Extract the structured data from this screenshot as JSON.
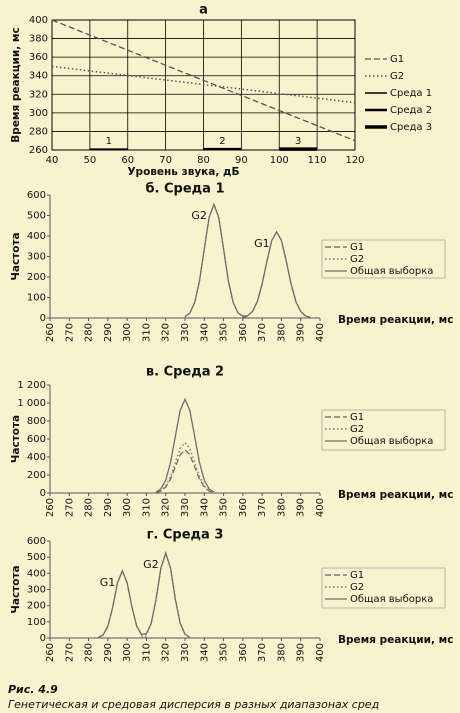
{
  "chart_data": [
    {
      "type": "line",
      "title": "а",
      "xlabel": "Уровень звука, дБ",
      "ylabel": "Время реакции, мс",
      "xlim": [
        40,
        120
      ],
      "ylim": [
        260,
        400
      ],
      "xticks": [
        40,
        50,
        60,
        70,
        80,
        90,
        100,
        110,
        120
      ],
      "yticks": [
        260,
        280,
        300,
        320,
        340,
        360,
        380,
        400
      ],
      "grid": true,
      "legend": "right",
      "series": [
        {
          "name": "G1",
          "color": "#555555",
          "dash": "dashed",
          "width": 1.3,
          "x": [
            40,
            120
          ],
          "values": [
            400,
            270
          ]
        },
        {
          "name": "G2",
          "color": "#555555",
          "dash": "dotted",
          "width": 1.5,
          "x": [
            40,
            120
          ],
          "values": [
            350,
            311
          ]
        },
        {
          "name": "Среда 1",
          "color": "#000000",
          "dash": "solid",
          "width": 1.5,
          "x": [
            50,
            60
          ],
          "values": [
            261,
            261
          ],
          "label": "1"
        },
        {
          "name": "Среда 2",
          "color": "#000000",
          "dash": "solid",
          "width": 2.5,
          "x": [
            80,
            90
          ],
          "values": [
            261,
            261
          ],
          "label": "2"
        },
        {
          "name": "Среда 3",
          "color": "#000000",
          "dash": "solid",
          "width": 3.5,
          "x": [
            100,
            110
          ],
          "values": [
            261,
            261
          ],
          "label": "3"
        }
      ]
    },
    {
      "type": "line",
      "title": "б. Среда 1",
      "xlabel": "Время реакции, мс",
      "ylabel": "Частота",
      "xlim": [
        260,
        400
      ],
      "ylim": [
        0,
        600
      ],
      "xticks": [
        260,
        270,
        280,
        290,
        300,
        310,
        320,
        330,
        340,
        350,
        360,
        370,
        380,
        390,
        400
      ],
      "yticks": [
        0,
        100,
        200,
        300,
        400,
        500,
        600
      ],
      "grid": false,
      "legend": "right",
      "series": [
        {
          "name": "G1",
          "color": "#666666",
          "dash": "dashed",
          "width": 1.2,
          "peak_label": "G1",
          "x": [
            360,
            362.5,
            365,
            367.5,
            370,
            372.5,
            375,
            377.5,
            380,
            382.5,
            385,
            387.5,
            390,
            392.5,
            395
          ],
          "values": [
            3,
            10,
            32,
            80,
            166,
            278,
            379,
            420,
            379,
            278,
            166,
            80,
            32,
            10,
            3
          ]
        },
        {
          "name": "G2",
          "color": "#777777",
          "dash": "dotted",
          "width": 1.4,
          "peak_label": "G2",
          "x": [
            330,
            332.5,
            335,
            337.5,
            340,
            342.5,
            345,
            347.5,
            350,
            352.5,
            355,
            357.5,
            360
          ],
          "values": [
            6,
            24,
            75,
            180,
            337,
            490,
            555,
            490,
            337,
            180,
            75,
            24,
            6
          ]
        },
        {
          "name": "Общая выборка",
          "color": "#6e6e6e",
          "dash": "solid",
          "width": 1.3,
          "x": [
            330,
            332.5,
            335,
            337.5,
            340,
            342.5,
            345,
            347.5,
            350,
            352.5,
            355,
            357.5,
            360,
            362.5,
            365,
            367.5,
            370,
            372.5,
            375,
            377.5,
            380,
            382.5,
            385,
            387.5,
            390,
            392.5,
            395
          ],
          "values": [
            6,
            24,
            75,
            180,
            337,
            490,
            555,
            490,
            337,
            180,
            75,
            25,
            9,
            11,
            32,
            80,
            166,
            278,
            379,
            420,
            379,
            278,
            166,
            80,
            32,
            10,
            3
          ]
        }
      ]
    },
    {
      "type": "line",
      "title": "в. Среда 2",
      "xlabel": "Время реакции, мс",
      "ylabel": "Частота",
      "xlim": [
        260,
        400
      ],
      "ylim": [
        0,
        1200
      ],
      "xticks": [
        260,
        270,
        280,
        290,
        300,
        310,
        320,
        330,
        340,
        350,
        360,
        370,
        380,
        390,
        400
      ],
      "yticks": [
        0,
        200,
        400,
        600,
        800,
        {
          "value": 1000,
          "label": "1 000"
        },
        {
          "value": 1200,
          "label": "1 200"
        }
      ],
      "grid": false,
      "legend": "right",
      "series": [
        {
          "name": "G1",
          "color": "#666666",
          "dash": "dashed",
          "width": 1.2,
          "x": [
            315,
            317.5,
            320,
            322.5,
            325,
            327.5,
            330,
            332.5,
            335,
            337.5,
            340,
            342.5,
            345
          ],
          "values": [
            5,
            21,
            65,
            156,
            291,
            424,
            480,
            424,
            291,
            156,
            65,
            21,
            5
          ]
        },
        {
          "name": "G2",
          "color": "#777777",
          "dash": "dotted",
          "width": 1.4,
          "x": [
            315,
            317.5,
            320,
            322.5,
            325,
            327.5,
            330,
            332.5,
            335,
            337.5,
            340,
            342.5,
            345
          ],
          "values": [
            6,
            25,
            76,
            182,
            340,
            494,
            560,
            494,
            340,
            182,
            76,
            25,
            6
          ]
        },
        {
          "name": "Общая выборка",
          "color": "#6e6e6e",
          "dash": "solid",
          "width": 1.3,
          "x": [
            315,
            317.5,
            320,
            322.5,
            325,
            327.5,
            330,
            332.5,
            335,
            337.5,
            340,
            342.5,
            345
          ],
          "values": [
            11,
            46,
            141,
            338,
            631,
            918,
            1040,
            918,
            631,
            338,
            141,
            46,
            11
          ]
        }
      ]
    },
    {
      "type": "line",
      "title": "г. Среда 3",
      "xlabel": "Время реакции, мс",
      "ylabel": "Частота",
      "xlim": [
        260,
        400
      ],
      "ylim": [
        0,
        600
      ],
      "xticks": [
        260,
        270,
        280,
        290,
        300,
        310,
        320,
        330,
        340,
        350,
        360,
        370,
        380,
        390,
        400
      ],
      "yticks": [
        0,
        100,
        200,
        300,
        400,
        500,
        600
      ],
      "grid": false,
      "legend": "right",
      "series": [
        {
          "name": "G1",
          "color": "#666666",
          "dash": "dashed",
          "width": 1.2,
          "peak_label": "G1",
          "x": [
            285,
            287.5,
            290,
            292.5,
            295,
            297.5,
            300,
            302.5,
            305,
            307.5,
            310
          ],
          "values": [
            3,
            18,
            72,
            190,
            341,
            415,
            341,
            190,
            72,
            18,
            3
          ]
        },
        {
          "name": "G2",
          "color": "#777777",
          "dash": "dotted",
          "width": 1.4,
          "peak_label": "G2",
          "x": [
            307.5,
            310,
            312.5,
            315,
            317.5,
            320,
            322.5,
            325,
            327.5,
            330,
            332.5
          ],
          "values": [
            4,
            23,
            91,
            240,
            432,
            525,
            432,
            240,
            91,
            23,
            4
          ]
        },
        {
          "name": "Общая выборка",
          "color": "#6e6e6e",
          "dash": "solid",
          "width": 1.3,
          "x": [
            285,
            287.5,
            290,
            292.5,
            295,
            297.5,
            300,
            302.5,
            305,
            307.5,
            310,
            312.5,
            315,
            317.5,
            320,
            322.5,
            325,
            327.5,
            330,
            332.5
          ],
          "values": [
            3,
            18,
            72,
            190,
            341,
            415,
            341,
            190,
            72,
            22,
            26,
            91,
            240,
            432,
            525,
            432,
            240,
            91,
            23,
            4
          ]
        }
      ]
    }
  ],
  "caption": {
    "label": "Рис. 4.9",
    "text": "Генетическая и средовая дисперсия в разных диапазонах сред"
  }
}
